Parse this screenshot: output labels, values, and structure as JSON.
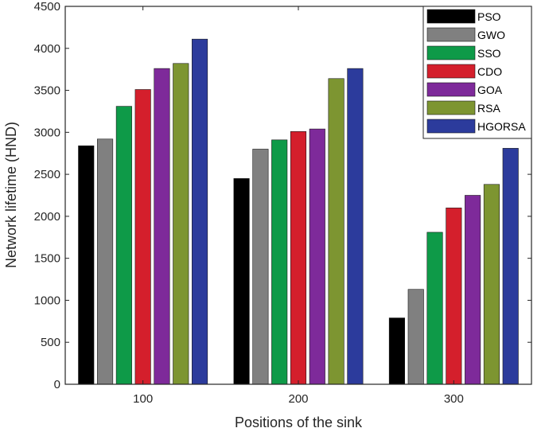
{
  "chart_data": {
    "type": "bar",
    "title": "",
    "xlabel": "Positions of the sink",
    "ylabel": "Network lifetime (HND)",
    "categories": [
      "100",
      "200",
      "300"
    ],
    "ylim": [
      0,
      4500
    ],
    "yticks": [
      0,
      500,
      1000,
      1500,
      2000,
      2500,
      3000,
      3500,
      4000,
      4500
    ],
    "legend_position": "top-right",
    "series": [
      {
        "name": "PSO",
        "color": "#000000",
        "values": [
          2840,
          2450,
          790
        ]
      },
      {
        "name": "GWO",
        "color": "#808080",
        "values": [
          2920,
          2800,
          1130
        ]
      },
      {
        "name": "SSO",
        "color": "#0e9a48",
        "values": [
          3310,
          2910,
          1810
        ]
      },
      {
        "name": "CDO",
        "color": "#d41f2c",
        "values": [
          3510,
          3010,
          2100
        ]
      },
      {
        "name": "GOA",
        "color": "#7e2a9a",
        "values": [
          3760,
          3040,
          2250
        ]
      },
      {
        "name": "RSA",
        "color": "#7d9531",
        "values": [
          3820,
          3640,
          2380
        ]
      },
      {
        "name": "HGORSA",
        "color": "#2c3b9c",
        "values": [
          4110,
          3760,
          2810
        ]
      }
    ]
  }
}
